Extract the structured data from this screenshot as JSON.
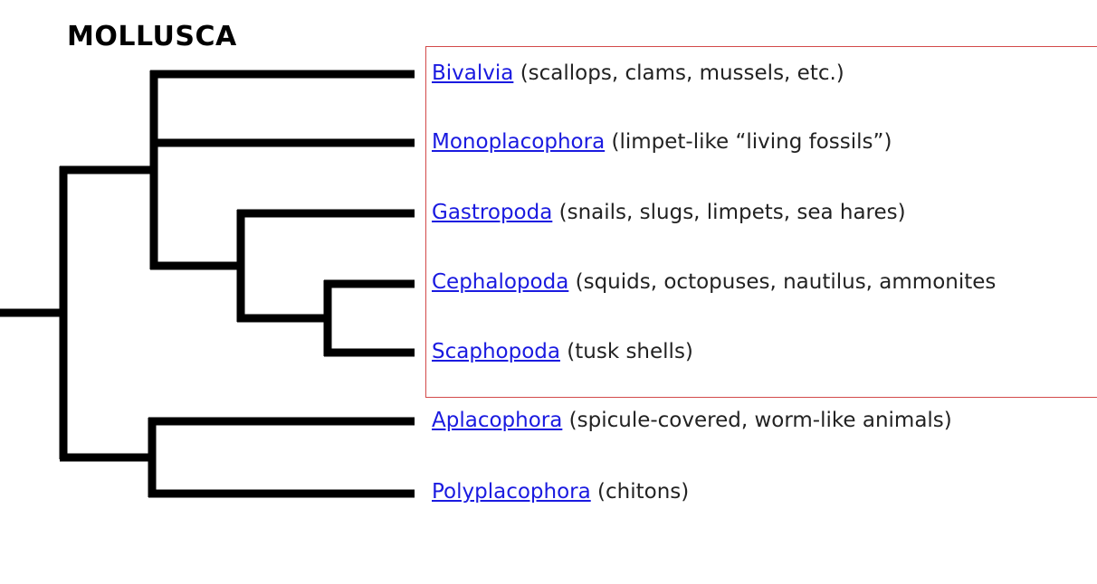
{
  "title": "MOLLUSCA",
  "highlight_color": "#d34a4a",
  "link_color": "#1a1ae0",
  "taxa": [
    {
      "name": "Bivalvia",
      "description": "(scallops, clams, mussels, etc.)",
      "highlighted": true
    },
    {
      "name": "Monoplacophora",
      "description": "(limpet-like “living fossils”)",
      "highlighted": true
    },
    {
      "name": "Gastropoda",
      "description": "(snails, slugs, limpets, sea hares)",
      "highlighted": true
    },
    {
      "name": "Cephalopoda",
      "description": "(squids, octopuses, nautilus, ammonites",
      "highlighted": true
    },
    {
      "name": "Scaphopoda",
      "description": "(tusk shells)",
      "highlighted": true
    },
    {
      "name": "Aplacophora",
      "description": "(spicule-covered, worm-like animals)",
      "highlighted": false
    },
    {
      "name": "Polyplacophora",
      "description": "(chitons)",
      "highlighted": false
    }
  ]
}
